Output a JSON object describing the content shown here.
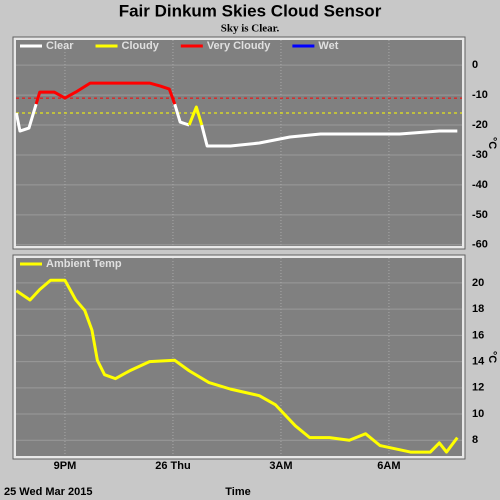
{
  "chart_data": [
    {
      "type": "line",
      "title": "Fair Dinkum Skies Cloud Sensor",
      "subtitle": "Sky is Clear.",
      "ylabel": "°C",
      "x": [
        19.65,
        19.75,
        20,
        20.2,
        20.3,
        20.7,
        21,
        21.3,
        21.7,
        22.25,
        22.8,
        23.35,
        23.65,
        23.9,
        24.05,
        24.2,
        24.45,
        24.65,
        24.8,
        24.95,
        25.6,
        26.4,
        27.25,
        28.1,
        29.2,
        30.3,
        31.4,
        31.9
      ],
      "series": [
        {
          "name": "Clear",
          "color": "#ffffff",
          "values": [
            -16,
            -22,
            -21,
            -13,
            null,
            null,
            null,
            null,
            null,
            null,
            null,
            null,
            null,
            null,
            -13,
            -19,
            -20,
            null,
            -20,
            -27,
            -27,
            -26,
            -24,
            -23,
            -23,
            -23,
            -22,
            -22
          ]
        },
        {
          "name": "Cloudy",
          "color": "#ffff00",
          "values": [
            null,
            null,
            null,
            null,
            null,
            null,
            null,
            null,
            null,
            null,
            null,
            null,
            null,
            null,
            null,
            null,
            -20,
            -14,
            -20,
            null,
            null,
            null,
            null,
            null,
            null,
            null,
            null,
            null
          ]
        },
        {
          "name": "Very Cloudy",
          "color": "#ff0000",
          "values": [
            null,
            null,
            null,
            -13,
            -9,
            -9,
            -11,
            -9,
            -6,
            -6,
            -6,
            -6,
            -7,
            -8,
            -13,
            null,
            null,
            null,
            null,
            null,
            null,
            null,
            null,
            null,
            null,
            null,
            null,
            null
          ]
        },
        {
          "name": "Wet",
          "color": "#0000ff",
          "values": [
            null,
            null,
            null,
            null,
            null,
            null,
            null,
            null,
            null,
            null,
            null,
            null,
            null,
            null,
            null,
            null,
            null,
            null,
            null,
            null,
            null,
            null,
            null,
            null,
            null,
            null,
            null,
            null
          ]
        }
      ],
      "thresholds": [
        {
          "value": -11,
          "color": "#ff0000"
        },
        {
          "value": -16,
          "color": "#ffff00"
        }
      ],
      "xlim": [
        19.64,
        32.03
      ],
      "ylim": [
        -60.4,
        8.4
      ],
      "yticks": [
        0,
        -10,
        -20,
        -30,
        -40,
        -50,
        -60
      ],
      "grid": true
    },
    {
      "type": "line",
      "ylabel": "°C",
      "xlabel": "Time",
      "date_label": "25 Wed Mar 2015",
      "x": [
        19.65,
        20.03,
        20.3,
        20.6,
        21.0,
        21.3,
        21.55,
        21.75,
        21.9,
        22.1,
        22.4,
        22.8,
        23.35,
        24.05,
        24.45,
        25.0,
        25.6,
        26.4,
        26.85,
        27.4,
        27.8,
        28.35,
        28.9,
        29.35,
        29.75,
        30.6,
        31.15,
        31.4,
        31.6,
        31.9
      ],
      "series": [
        {
          "name": "Ambient Temp",
          "color": "#ffff00",
          "values": [
            19.4,
            18.7,
            19.5,
            20.2,
            20.2,
            18.7,
            17.9,
            16.4,
            14.1,
            13,
            12.7,
            13.3,
            14,
            14.1,
            13.3,
            12.4,
            11.9,
            11.4,
            10.7,
            9.1,
            8.2,
            8.2,
            8.0,
            8.5,
            7.6,
            7.1,
            7.1,
            7.8,
            7.1,
            8.2
          ]
        }
      ],
      "xlim": [
        19.64,
        32.03
      ],
      "ylim": [
        6.8,
        21.9
      ],
      "yticks": [
        8,
        10,
        12,
        14,
        16,
        18,
        20
      ],
      "xticks": [
        {
          "value": 21,
          "label": "9PM"
        },
        {
          "value": 24,
          "label": "26 Thu"
        },
        {
          "value": 27,
          "label": "3AM"
        },
        {
          "value": 30,
          "label": "6AM"
        }
      ],
      "grid": true
    }
  ]
}
